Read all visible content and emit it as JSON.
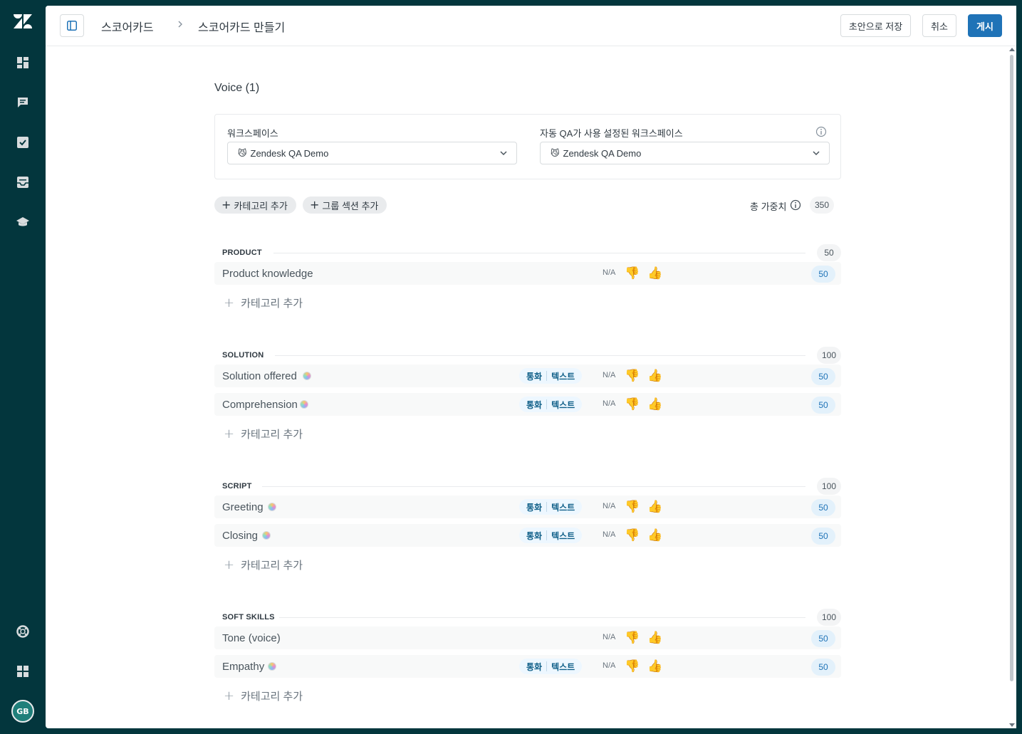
{
  "breadcrumb": {
    "parent": "스코어카드",
    "current": "스코어카드 만들기"
  },
  "header_buttons": {
    "save_draft": "초안으로 저장",
    "cancel": "취소",
    "publish": "게시"
  },
  "scorecard_title": "Voice (1)",
  "workspace": {
    "label": "워크스페이스",
    "value": "Zendesk QA Demo",
    "emoji": "😼",
    "auto_qa_label": "자동 QA가 사용 설정된 워크스페이스",
    "auto_qa_value": "Zendesk QA Demo"
  },
  "actions": {
    "add_category": "카테고리 추가",
    "add_group_section": "그룹 섹션 추가"
  },
  "total_weight": {
    "label": "총 가중치",
    "value": "350"
  },
  "na_label": "N/A",
  "channel_call": "통화",
  "channel_text": "텍스트",
  "add_category_link": "카테고리 추가",
  "sections": [
    {
      "title": "PRODUCT",
      "weight": "50",
      "rows": [
        {
          "label": "Product knowledge",
          "ai": false,
          "channels": false,
          "weight": "50"
        }
      ]
    },
    {
      "title": "SOLUTION",
      "weight": "100",
      "rows": [
        {
          "label": "Solution offered",
          "ai": true,
          "channels": true,
          "weight": "50"
        },
        {
          "label": "Comprehension",
          "ai": true,
          "channels": true,
          "weight": "50"
        }
      ]
    },
    {
      "title": "SCRIPT",
      "weight": "100",
      "rows": [
        {
          "label": "Greeting",
          "ai": true,
          "channels": true,
          "weight": "50"
        },
        {
          "label": "Closing",
          "ai": true,
          "channels": true,
          "weight": "50"
        }
      ]
    },
    {
      "title": "SOFT SKILLS",
      "weight": "100",
      "rows": [
        {
          "label": "Tone (voice)",
          "ai": false,
          "channels": false,
          "weight": "50"
        },
        {
          "label": "Empathy",
          "ai": true,
          "channels": true,
          "weight": "50"
        }
      ]
    }
  ],
  "user": {
    "initials": "GB"
  },
  "colors": {
    "nav_bg": "#03363d",
    "primary": "#1f73b7",
    "weight_badge": "#e3f1fb"
  }
}
